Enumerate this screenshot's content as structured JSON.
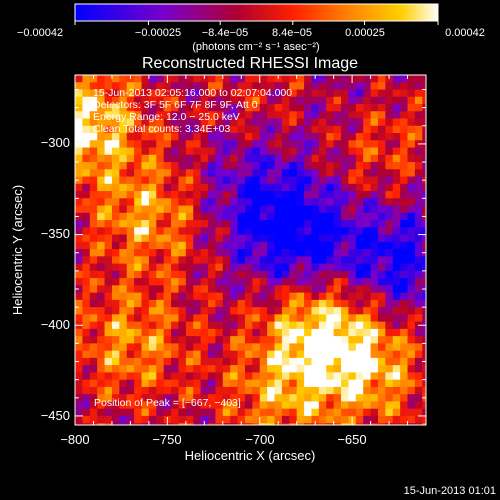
{
  "colors": {
    "background": "#000000",
    "text": "#ffffff",
    "colormap": [
      "#0000ff",
      "#7a00c8",
      "#b00030",
      "#ff2000",
      "#ff8000",
      "#ffd000",
      "#ffffff"
    ]
  },
  "colorbar": {
    "tick_labels": [
      "−0.00042",
      "−0.00025",
      "−8.4e−05",
      "8.4e−05",
      "0.00025",
      "0.00042"
    ],
    "tick_values": [
      -0.00042,
      -0.00025,
      -8.4e-05,
      8.4e-05,
      0.00025,
      0.00042
    ],
    "range": [
      -0.00042,
      0.00042
    ],
    "units_label": "(photons cm⁻² s⁻¹ asec⁻²)"
  },
  "chart_data": {
    "type": "heatmap",
    "title": "Reconstructed RHESSI Image",
    "xlabel": "Heliocentric X (arcsec)",
    "ylabel": "Heliocentric Y (arcsec)",
    "xlim": [
      -800,
      -610
    ],
    "ylim": [
      -455,
      -262
    ],
    "x_ticks": [
      -800,
      -750,
      -700,
      -650
    ],
    "y_ticks": [
      -300,
      -350,
      -400,
      -450
    ],
    "x_tick_labels": [
      "−800",
      "−750",
      "−700",
      "−650"
    ],
    "y_tick_labels": [
      "−300",
      "−350",
      "−400",
      "−450"
    ],
    "annotations": [
      "15-Jun-2013 02:05:16.000 to 02:07:04.000",
      "Detectors: 3F 5F 6F 7F 8F 9F, Att 0",
      "Energy Range: 12.0 − 25.0 keV",
      "Clean    Total counts: 3.34E+03"
    ],
    "peak_label": "Position of Peak = [−667, −403]",
    "peak": {
      "x": -667,
      "y": -403
    },
    "peak_value": 0.00042,
    "bright_regions": [
      {
        "x": -795,
        "y": -290,
        "value": 0.00042
      },
      {
        "x": -760,
        "y": -340,
        "value": 0.0003
      },
      {
        "x": -770,
        "y": -410,
        "value": 0.00028
      },
      {
        "x": -667,
        "y": -403,
        "value": 0.00042
      },
      {
        "x": -640,
        "y": -425,
        "value": 0.0003
      },
      {
        "x": -690,
        "y": -440,
        "value": 0.00025
      },
      {
        "x": -640,
        "y": -300,
        "value": 0.0002
      },
      {
        "x": -690,
        "y": -270,
        "value": 0.00012
      }
    ],
    "dim_regions": [
      {
        "x": -680,
        "y": -350,
        "value": -0.00042
      },
      {
        "x": -625,
        "y": -365,
        "value": -0.00035
      },
      {
        "x": -705,
        "y": -325,
        "value": -0.0002
      },
      {
        "x": -660,
        "y": -280,
        "value": -0.00015
      }
    ]
  },
  "footer": {
    "timestamp": "15-Jun-2013 01:01"
  }
}
